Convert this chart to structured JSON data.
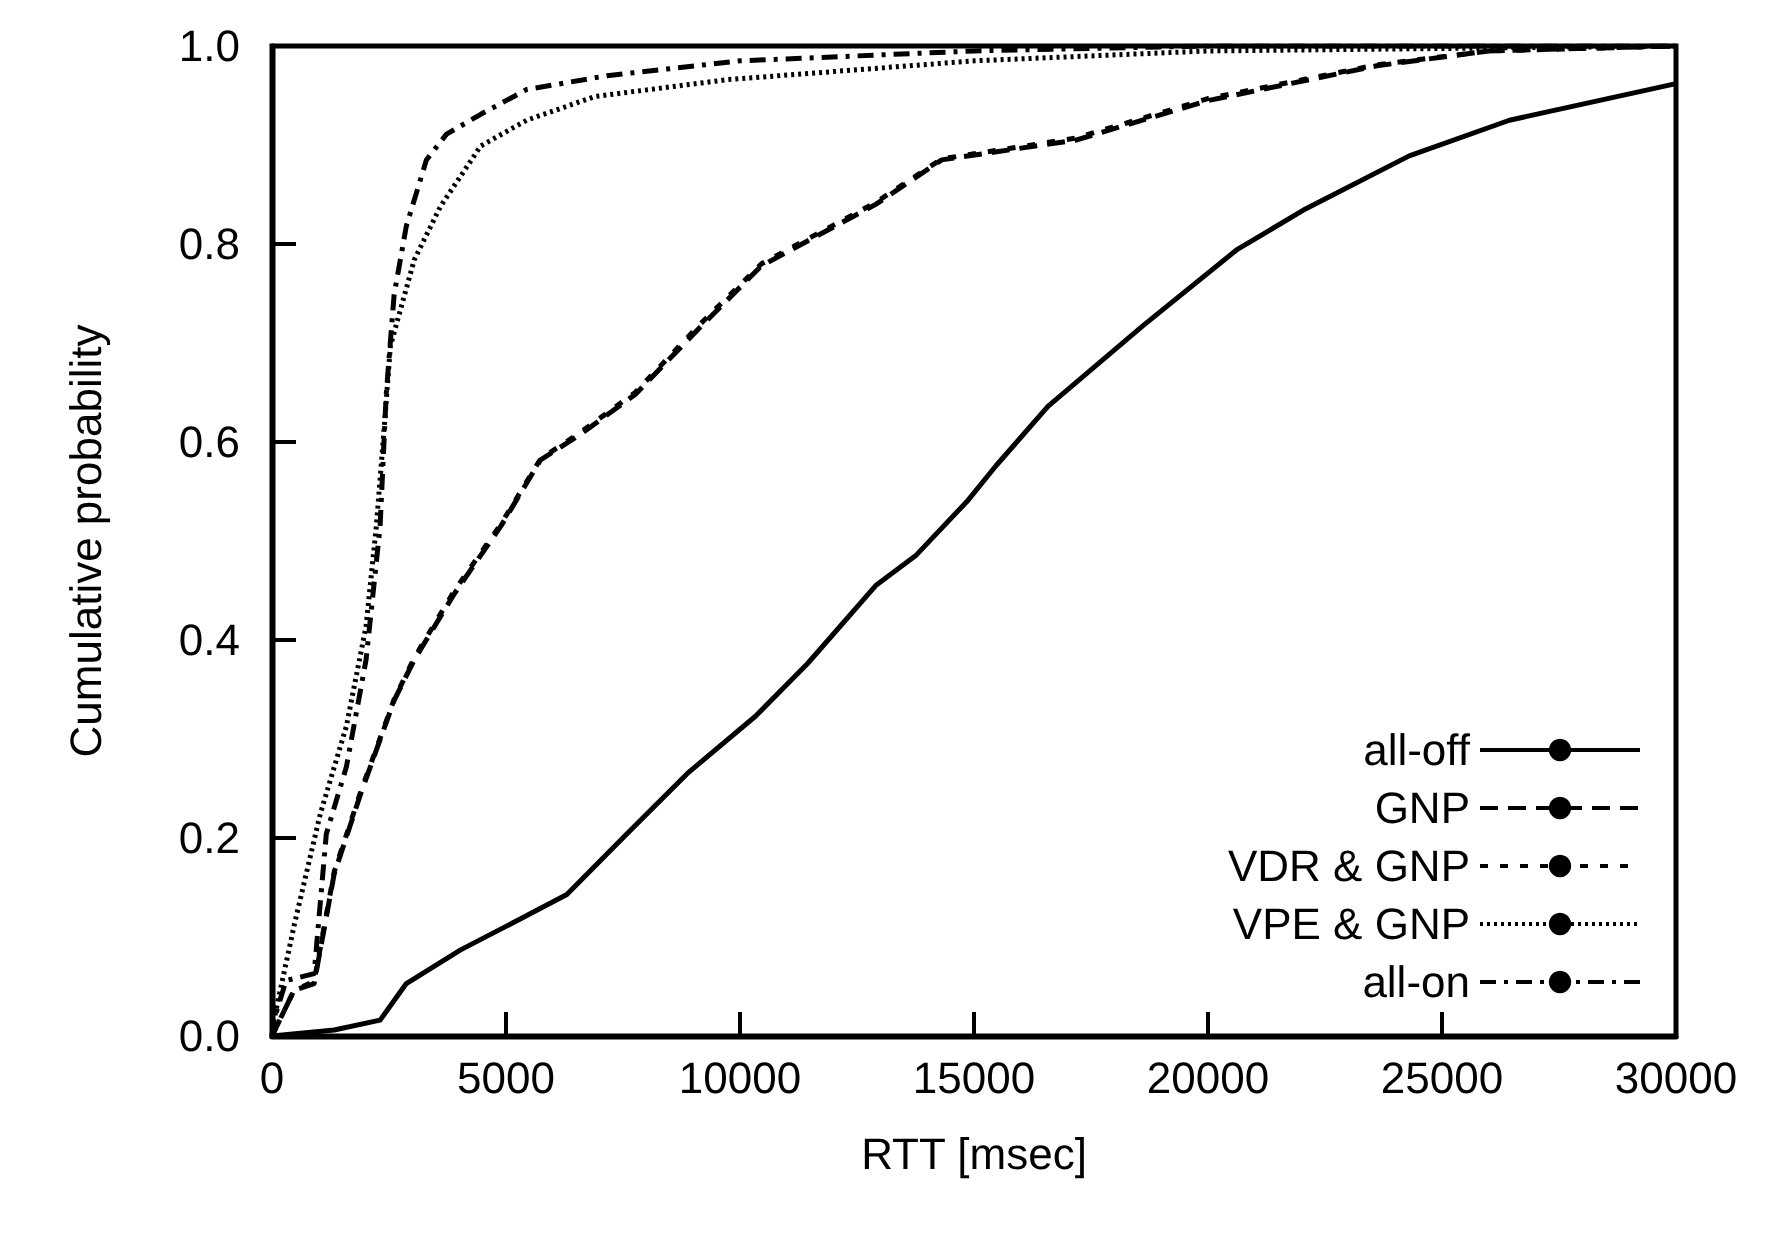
{
  "chart_data": {
    "type": "line",
    "xlabel": "RTT [msec]",
    "ylabel": "Cumulative probability",
    "xlim": [
      0,
      30000
    ],
    "ylim": [
      0,
      1
    ],
    "xticks": [
      0,
      5000,
      10000,
      15000,
      20000,
      25000,
      30000
    ],
    "yticks": [
      {
        "value": 0,
        "label": "0.0"
      },
      {
        "value": 0.2,
        "label": "0.2"
      },
      {
        "value": 0.4,
        "label": "0.4"
      },
      {
        "value": 0.6,
        "label": "0.6"
      },
      {
        "value": 0.8,
        "label": "0.8"
      },
      {
        "value": 1,
        "label": "1.0"
      }
    ],
    "legend": "bottom right",
    "grid": false,
    "marker": "none",
    "series": [
      {
        "name": "all-off",
        "color": "#000000",
        "line_style": "solid",
        "x": [
          0,
          1330,
          2310,
          2870,
          4030,
          5010,
          6300,
          7580,
          8870,
          10330,
          11440,
          12900,
          13750,
          14870,
          15470,
          16580,
          18600,
          20610,
          22030,
          24300,
          26440,
          30000
        ],
        "values": [
          0,
          0.006,
          0.016,
          0.053,
          0.087,
          0.111,
          0.143,
          0.204,
          0.265,
          0.323,
          0.376,
          0.455,
          0.485,
          0.541,
          0.576,
          0.636,
          0.717,
          0.794,
          0.834,
          0.889,
          0.925,
          0.962
        ]
      },
      {
        "name": "GNP",
        "color": "#000000",
        "line_style": "dashed",
        "x": [
          0,
          470,
          900,
          1330,
          1890,
          2610,
          3040,
          3900,
          4890,
          5740,
          6600,
          7760,
          9170,
          10460,
          12900,
          14310,
          17180,
          20010,
          23610,
          26000,
          30000
        ],
        "values": [
          0,
          0.046,
          0.053,
          0.164,
          0.244,
          0.339,
          0.38,
          0.447,
          0.515,
          0.582,
          0.608,
          0.648,
          0.717,
          0.778,
          0.84,
          0.885,
          0.905,
          0.945,
          0.98,
          0.995,
          1
        ]
      },
      {
        "name": "VDR & GNP",
        "color": "#000000",
        "line_style": "shortdash",
        "x": [
          0,
          470,
          900,
          1330,
          1890,
          2610,
          3040,
          3900,
          4890,
          5740,
          6600,
          7760,
          9170,
          10460,
          12900,
          14310,
          17180,
          20010,
          23610,
          26000,
          30000
        ],
        "values": [
          0,
          0.046,
          0.055,
          0.166,
          0.246,
          0.34,
          0.382,
          0.45,
          0.517,
          0.583,
          0.61,
          0.65,
          0.72,
          0.78,
          0.842,
          0.886,
          0.907,
          0.947,
          0.981,
          0.995,
          1
        ]
      },
      {
        "name": "VPE & GNP",
        "color": "#000000",
        "line_style": "dotted",
        "x": [
          0,
          40,
          470,
          1030,
          1590,
          2010,
          2230,
          2400,
          2530,
          3040,
          3600,
          4460,
          5440,
          6900,
          9730,
          15000,
          20000,
          30000
        ],
        "values": [
          0,
          0.016,
          0.111,
          0.224,
          0.313,
          0.414,
          0.515,
          0.616,
          0.697,
          0.784,
          0.838,
          0.899,
          0.925,
          0.949,
          0.966,
          0.985,
          0.995,
          1
        ]
      },
      {
        "name": "all-on",
        "color": "#000000",
        "line_style": "dashdot",
        "x": [
          0,
          40,
          300,
          900,
          1160,
          1590,
          2010,
          2310,
          2440,
          2610,
          2870,
          3300,
          3730,
          4460,
          5440,
          7160,
          10000,
          15000,
          20000,
          30000
        ],
        "values": [
          0,
          0.016,
          0.056,
          0.063,
          0.204,
          0.272,
          0.38,
          0.515,
          0.648,
          0.749,
          0.818,
          0.885,
          0.911,
          0.931,
          0.956,
          0.97,
          0.985,
          0.995,
          1,
          1
        ]
      }
    ]
  }
}
